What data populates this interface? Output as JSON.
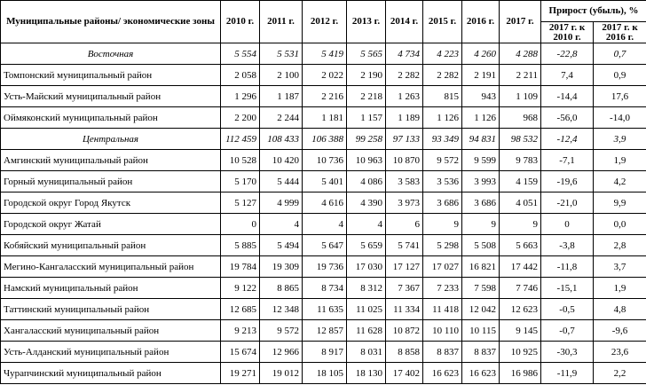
{
  "header": {
    "name": "Муниципальные районы/ экономические зоны",
    "years": [
      "2010 г.",
      "2011 г.",
      "2012 г.",
      "2013 г.",
      "2014 г.",
      "2015 г.",
      "2016 г.",
      "2017 г."
    ],
    "growth": "Прирост (убыль), %",
    "growth_cols": [
      "2017 г. к 2010 г.",
      "2017 г. к 2016 г."
    ]
  },
  "zones": [
    {
      "name": "Восточная",
      "values": [
        "5 554",
        "5 531",
        "5 419",
        "5 565",
        "4 734",
        "4 223",
        "4 260",
        "4 288",
        "-22,8",
        "0,7"
      ],
      "rows": [
        {
          "name": "Томпонский муниципальный район",
          "values": [
            "2 058",
            "2 100",
            "2 022",
            "2 190",
            "2 282",
            "2 282",
            "2 191",
            "2 211",
            "7,4",
            "0,9"
          ]
        },
        {
          "name": "Усть-Майский муниципальный район",
          "values": [
            "1 296",
            "1 187",
            "2 216",
            "2 218",
            "1 263",
            "815",
            "943",
            "1 109",
            "-14,4",
            "17,6"
          ]
        },
        {
          "name": "Оймяконский муниципальный район",
          "values": [
            "2 200",
            "2 244",
            "1 181",
            "1 157",
            "1 189",
            "1 126",
            "1 126",
            "968",
            "-56,0",
            "-14,0"
          ]
        }
      ]
    },
    {
      "name": "Центральная",
      "values": [
        "112 459",
        "108 433",
        "106 388",
        "99 258",
        "97 133",
        "93 349",
        "94 831",
        "98 532",
        "-12,4",
        "3,9"
      ],
      "rows": [
        {
          "name": "Амгинский муниципальный район",
          "values": [
            "10 528",
            "10 420",
            "10 736",
            "10 963",
            "10 870",
            "9 572",
            "9 599",
            "9 783",
            "-7,1",
            "1,9"
          ]
        },
        {
          "name": "Горный муниципальный район",
          "values": [
            "5 170",
            "5 444",
            "5 401",
            "4 086",
            "3 583",
            "3 536",
            "3 993",
            "4 159",
            "-19,6",
            "4,2"
          ]
        },
        {
          "name": "Городской округ Город Якутск",
          "values": [
            "5 127",
            "4 999",
            "4 616",
            "4 390",
            "3 973",
            "3 686",
            "3 686",
            "4 051",
            "-21,0",
            "9,9"
          ]
        },
        {
          "name": "Городской округ Жатай",
          "values": [
            "0",
            "4",
            "4",
            "4",
            "6",
            "9",
            "9",
            "9",
            "0",
            "0,0"
          ]
        },
        {
          "name": "Кобяйский муниципальный район",
          "values": [
            "5 885",
            "5 494",
            "5 647",
            "5 659",
            "5 741",
            "5 298",
            "5 508",
            "5 663",
            "-3,8",
            "2,8"
          ]
        },
        {
          "name": "Мегино-Кангаласский муниципальный район",
          "values": [
            "19 784",
            "19 309",
            "19 736",
            "17 030",
            "17 127",
            "17 027",
            "16 821",
            "17 442",
            "-11,8",
            "3,7"
          ]
        },
        {
          "name": "Намский муниципальный район",
          "values": [
            "9 122",
            "8 865",
            "8 734",
            "8 312",
            "7 367",
            "7 233",
            "7 598",
            "7 746",
            "-15,1",
            "1,9"
          ]
        },
        {
          "name": "Таттинский муниципальный район",
          "values": [
            "12 685",
            "12 348",
            "11 635",
            "11 025",
            "11 334",
            "11 418",
            "12 042",
            "12 623",
            "-0,5",
            "4,8"
          ]
        },
        {
          "name": "Хангаласский муниципальный район",
          "values": [
            "9 213",
            "9 572",
            "12 857",
            "11 628",
            "10 872",
            "10 110",
            "10 115",
            "9 145",
            "-0,7",
            "-9,6"
          ]
        },
        {
          "name": "Усть-Алданский муниципальный район",
          "values": [
            "15 674",
            "12 966",
            "8 917",
            "8 031",
            "8 858",
            "8 837",
            "8 837",
            "10 925",
            "-30,3",
            "23,6"
          ]
        },
        {
          "name": "Чурапчинский муниципальный район",
          "values": [
            "19 271",
            "19 012",
            "18 105",
            "18 130",
            "17 402",
            "16 623",
            "16 623",
            "16 986",
            "-11,9",
            "2,2"
          ]
        }
      ]
    }
  ]
}
